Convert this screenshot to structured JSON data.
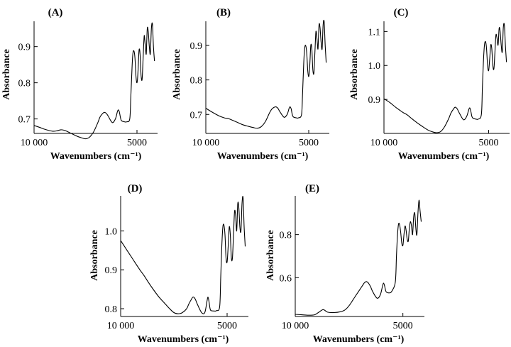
{
  "figure": {
    "panels": [
      {
        "label": "(A)",
        "ylabel": "Absorbance",
        "xlabel": "Wavenumbers (cm⁻¹)",
        "x_ticks": [
          "10 000",
          "5000"
        ],
        "y_ticks": [
          "0.7",
          "0.8",
          "0.9"
        ]
      },
      {
        "label": "(B)",
        "ylabel": "Absorbance",
        "xlabel": "Wavenumbers (cm⁻¹)",
        "x_ticks": [
          "10 000",
          "5000"
        ],
        "y_ticks": [
          "0.7",
          "0.8",
          "0.9"
        ]
      },
      {
        "label": "(C)",
        "ylabel": "Absorbance",
        "xlabel": "Wavenumbers (cm⁻¹)",
        "x_ticks": [
          "10 000",
          "5000"
        ],
        "y_ticks": [
          "0.9",
          "1.0",
          "1.1"
        ]
      },
      {
        "label": "(D)",
        "ylabel": "Absorbance",
        "xlabel": "Wavenumbers (cm⁻¹)",
        "x_ticks": [
          "10 000",
          "5000"
        ],
        "y_ticks": [
          "0.8",
          "0.9",
          "1.0"
        ]
      },
      {
        "label": "(E)",
        "ylabel": "Absorbance",
        "xlabel": "Wavenumbers (cm⁻¹)",
        "x_ticks": [
          "10 000",
          "5000"
        ],
        "y_ticks": [
          "0.6",
          "0.8"
        ]
      }
    ]
  },
  "chart_data": [
    {
      "type": "line",
      "title": "(A)",
      "xlabel": "Wavenumbers (cm⁻¹)",
      "ylabel": "Absorbance",
      "xlim": [
        10000,
        4000
      ],
      "ylim": [
        0.66,
        0.97
      ],
      "grid": false,
      "x_ticks": [
        10000,
        5000
      ],
      "y_ticks": [
        0.7,
        0.8,
        0.9
      ],
      "series": [
        {
          "x": [
            10000,
            9700,
            9400,
            9100,
            8900,
            8700,
            8500,
            8200,
            7900,
            7700,
            7500,
            7300,
            7100,
            6900,
            6800,
            6700,
            6600,
            6500,
            6400,
            6200,
            6050,
            5950,
            5900,
            5850,
            5800,
            5750,
            5600,
            5500,
            5350,
            5300,
            5250,
            5200,
            5150,
            5100,
            5050,
            5000,
            4950,
            4900,
            4850,
            4800,
            4750,
            4700,
            4650,
            4600,
            4550,
            4500,
            4450,
            4400,
            4350,
            4300,
            4250,
            4200,
            4150
          ],
          "y": [
            0.682,
            0.676,
            0.67,
            0.666,
            0.667,
            0.67,
            0.668,
            0.66,
            0.652,
            0.648,
            0.645,
            0.65,
            0.665,
            0.69,
            0.705,
            0.713,
            0.718,
            0.716,
            0.708,
            0.69,
            0.7,
            0.72,
            0.725,
            0.718,
            0.703,
            0.695,
            0.692,
            0.692,
            0.7,
            0.76,
            0.83,
            0.88,
            0.888,
            0.87,
            0.82,
            0.8,
            0.83,
            0.89,
            0.88,
            0.82,
            0.81,
            0.87,
            0.93,
            0.905,
            0.88,
            0.95,
            0.94,
            0.9,
            0.88,
            0.95,
            0.962,
            0.9,
            0.86
          ]
        }
      ]
    },
    {
      "type": "line",
      "title": "(B)",
      "xlabel": "Wavenumbers (cm⁻¹)",
      "ylabel": "Absorbance",
      "xlim": [
        10000,
        4000
      ],
      "ylim": [
        0.645,
        0.97
      ],
      "grid": false,
      "x_ticks": [
        10000,
        5000
      ],
      "y_ticks": [
        0.7,
        0.8,
        0.9
      ],
      "series": [
        {
          "x": [
            10000,
            9700,
            9400,
            9100,
            8900,
            8700,
            8500,
            8200,
            7900,
            7700,
            7500,
            7300,
            7100,
            6900,
            6800,
            6700,
            6600,
            6500,
            6400,
            6200,
            6050,
            5950,
            5900,
            5850,
            5800,
            5750,
            5600,
            5500,
            5350,
            5300,
            5250,
            5200,
            5150,
            5100,
            5050,
            5000,
            4950,
            4900,
            4850,
            4800,
            4750,
            4700,
            4650,
            4600,
            4550,
            4500,
            4450,
            4400,
            4350,
            4300,
            4250,
            4200,
            4150
          ],
          "y": [
            0.718,
            0.707,
            0.697,
            0.69,
            0.688,
            0.683,
            0.678,
            0.67,
            0.665,
            0.662,
            0.66,
            0.665,
            0.68,
            0.705,
            0.715,
            0.72,
            0.722,
            0.718,
            0.708,
            0.692,
            0.7,
            0.718,
            0.722,
            0.715,
            0.7,
            0.693,
            0.69,
            0.69,
            0.7,
            0.76,
            0.84,
            0.89,
            0.9,
            0.88,
            0.83,
            0.81,
            0.84,
            0.9,
            0.89,
            0.83,
            0.82,
            0.88,
            0.94,
            0.92,
            0.89,
            0.96,
            0.95,
            0.91,
            0.89,
            0.96,
            0.968,
            0.9,
            0.85
          ]
        }
      ]
    },
    {
      "type": "line",
      "title": "(C)",
      "xlabel": "Wavenumbers (cm⁻¹)",
      "ylabel": "Absorbance",
      "xlim": [
        10000,
        4000
      ],
      "ylim": [
        0.8,
        1.13
      ],
      "grid": false,
      "x_ticks": [
        10000,
        5000
      ],
      "y_ticks": [
        0.9,
        1.0,
        1.1
      ],
      "series": [
        {
          "x": [
            10000,
            9700,
            9400,
            9100,
            8900,
            8700,
            8500,
            8200,
            7900,
            7700,
            7500,
            7300,
            7100,
            6900,
            6800,
            6700,
            6600,
            6500,
            6400,
            6200,
            6050,
            5950,
            5900,
            5850,
            5800,
            5750,
            5600,
            5500,
            5350,
            5300,
            5250,
            5200,
            5150,
            5100,
            5050,
            5000,
            4950,
            4900,
            4850,
            4800,
            4750,
            4700,
            4650,
            4600,
            4550,
            4500,
            4450,
            4400,
            4350,
            4300,
            4250,
            4200,
            4150
          ],
          "y": [
            0.902,
            0.89,
            0.875,
            0.862,
            0.855,
            0.845,
            0.835,
            0.822,
            0.81,
            0.805,
            0.802,
            0.805,
            0.82,
            0.845,
            0.86,
            0.87,
            0.877,
            0.872,
            0.86,
            0.84,
            0.85,
            0.87,
            0.875,
            0.865,
            0.85,
            0.845,
            0.842,
            0.842,
            0.855,
            0.93,
            1.01,
            1.06,
            1.07,
            1.05,
            1.0,
            0.985,
            1.02,
            1.06,
            1.05,
            1.0,
            0.99,
            1.04,
            1.09,
            1.08,
            1.06,
            1.11,
            1.1,
            1.06,
            1.04,
            1.11,
            1.12,
            1.06,
            1.01
          ]
        }
      ]
    },
    {
      "type": "line",
      "title": "(D)",
      "xlabel": "Wavenumbers (cm⁻¹)",
      "ylabel": "Absorbance",
      "xlim": [
        10000,
        4000
      ],
      "ylim": [
        0.78,
        1.09
      ],
      "grid": false,
      "x_ticks": [
        10000,
        5000
      ],
      "y_ticks": [
        0.8,
        0.9,
        1.0
      ],
      "series": [
        {
          "x": [
            10000,
            9700,
            9400,
            9100,
            8900,
            8700,
            8500,
            8200,
            7900,
            7700,
            7500,
            7300,
            7100,
            6900,
            6800,
            6700,
            6600,
            6500,
            6400,
            6200,
            6050,
            5950,
            5900,
            5850,
            5800,
            5750,
            5600,
            5500,
            5350,
            5300,
            5250,
            5200,
            5150,
            5100,
            5050,
            5000,
            4950,
            4900,
            4850,
            4800,
            4750,
            4700,
            4650,
            4600,
            4550,
            4500,
            4450,
            4400,
            4350,
            4300,
            4250,
            4200,
            4150
          ],
          "y": [
            0.975,
            0.95,
            0.925,
            0.9,
            0.885,
            0.868,
            0.852,
            0.83,
            0.812,
            0.8,
            0.79,
            0.787,
            0.79,
            0.8,
            0.812,
            0.822,
            0.83,
            0.825,
            0.812,
            0.79,
            0.79,
            0.818,
            0.83,
            0.818,
            0.8,
            0.795,
            0.794,
            0.795,
            0.805,
            0.88,
            0.96,
            1.01,
            1.015,
            0.99,
            0.93,
            0.92,
            0.96,
            1.01,
            0.99,
            0.93,
            0.93,
            0.99,
            1.05,
            1.04,
            1.0,
            1.07,
            1.06,
            1.01,
            1.0,
            1.07,
            1.085,
            1.01,
            0.96
          ]
        }
      ]
    },
    {
      "type": "line",
      "title": "(E)",
      "xlabel": "Wavenumbers (cm⁻¹)",
      "ylabel": "Absorbance",
      "xlim": [
        10000,
        4000
      ],
      "ylim": [
        0.42,
        0.98
      ],
      "grid": false,
      "x_ticks": [
        10000,
        5000
      ],
      "y_ticks": [
        0.6,
        0.8
      ],
      "series": [
        {
          "x": [
            10000,
            9700,
            9400,
            9100,
            8900,
            8700,
            8500,
            8200,
            7900,
            7700,
            7500,
            7300,
            7100,
            6900,
            6800,
            6700,
            6600,
            6500,
            6400,
            6200,
            6050,
            5950,
            5900,
            5850,
            5800,
            5750,
            5600,
            5500,
            5350,
            5300,
            5250,
            5200,
            5150,
            5100,
            5050,
            5000,
            4950,
            4900,
            4850,
            4800,
            4750,
            4700,
            4650,
            4600,
            4550,
            4500,
            4450,
            4400,
            4350,
            4300,
            4250,
            4200,
            4150
          ],
          "y": [
            0.43,
            0.428,
            0.426,
            0.428,
            0.44,
            0.452,
            0.44,
            0.438,
            0.442,
            0.45,
            0.47,
            0.5,
            0.53,
            0.56,
            0.575,
            0.582,
            0.575,
            0.558,
            0.535,
            0.505,
            0.52,
            0.56,
            0.575,
            0.562,
            0.54,
            0.532,
            0.53,
            0.54,
            0.58,
            0.7,
            0.8,
            0.85,
            0.845,
            0.81,
            0.76,
            0.75,
            0.8,
            0.84,
            0.82,
            0.78,
            0.77,
            0.83,
            0.86,
            0.84,
            0.8,
            0.88,
            0.9,
            0.83,
            0.8,
            0.9,
            0.96,
            0.91,
            0.86
          ]
        }
      ]
    }
  ]
}
